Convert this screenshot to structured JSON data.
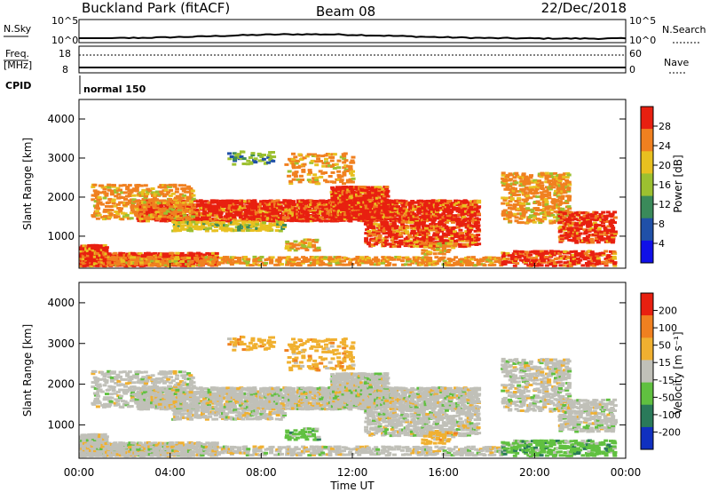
{
  "header": {
    "site": "Buckland Park (fitACF)",
    "beam": "Beam 08",
    "date": "22/Dec/2018"
  },
  "aux": {
    "nsky_label": "N.Sky",
    "nsearch_label": "N.Search",
    "freq_label_1": "Freq.",
    "freq_label_2": "[MHz]",
    "cpid_label": "CPID",
    "nave_label": "Nave",
    "left_pow_top": "10^5",
    "left_pow_bot": "10^0",
    "right_pow_top": "10^5",
    "right_pow_bot": "10^0",
    "freq_top": "18",
    "freq_bot": "8",
    "nave_top": "60",
    "nave_bot": "0",
    "cpid_text": "normal 150"
  },
  "chart_data": [
    {
      "type": "heatmap",
      "panel": "power",
      "ylabel": "Slant Range [km]",
      "ylim": [
        180,
        4500
      ],
      "yticks": [
        1000,
        2000,
        3000,
        4000
      ],
      "colorbar": {
        "label": "Power [dB]",
        "ticks": [
          "4",
          "8",
          "12",
          "16",
          "20",
          "24",
          "28"
        ],
        "colors": [
          "#1010e8",
          "#2050a8",
          "#3a8a5a",
          "#9cc030",
          "#e8c020",
          "#f08020",
          "#e82010"
        ]
      }
    },
    {
      "type": "heatmap",
      "panel": "velocity",
      "ylabel": "Slant Range [km]",
      "xlabel": "Time UT",
      "ylim": [
        180,
        4500
      ],
      "yticks": [
        1000,
        2000,
        3000,
        4000
      ],
      "xticks": [
        "00:00",
        "04:00",
        "08:00",
        "12:00",
        "16:00",
        "20:00",
        "00:00"
      ],
      "colorbar": {
        "label": "Velocity [m s⁻¹]",
        "ticks": [
          "200",
          "100",
          "50",
          "15",
          "-15",
          "-50",
          "-100",
          "-200"
        ],
        "colors": [
          "#1030c0",
          "#2a7a5a",
          "#60c040",
          "#c0c0b8",
          "#f0b030",
          "#f08020",
          "#e82010"
        ]
      }
    }
  ]
}
